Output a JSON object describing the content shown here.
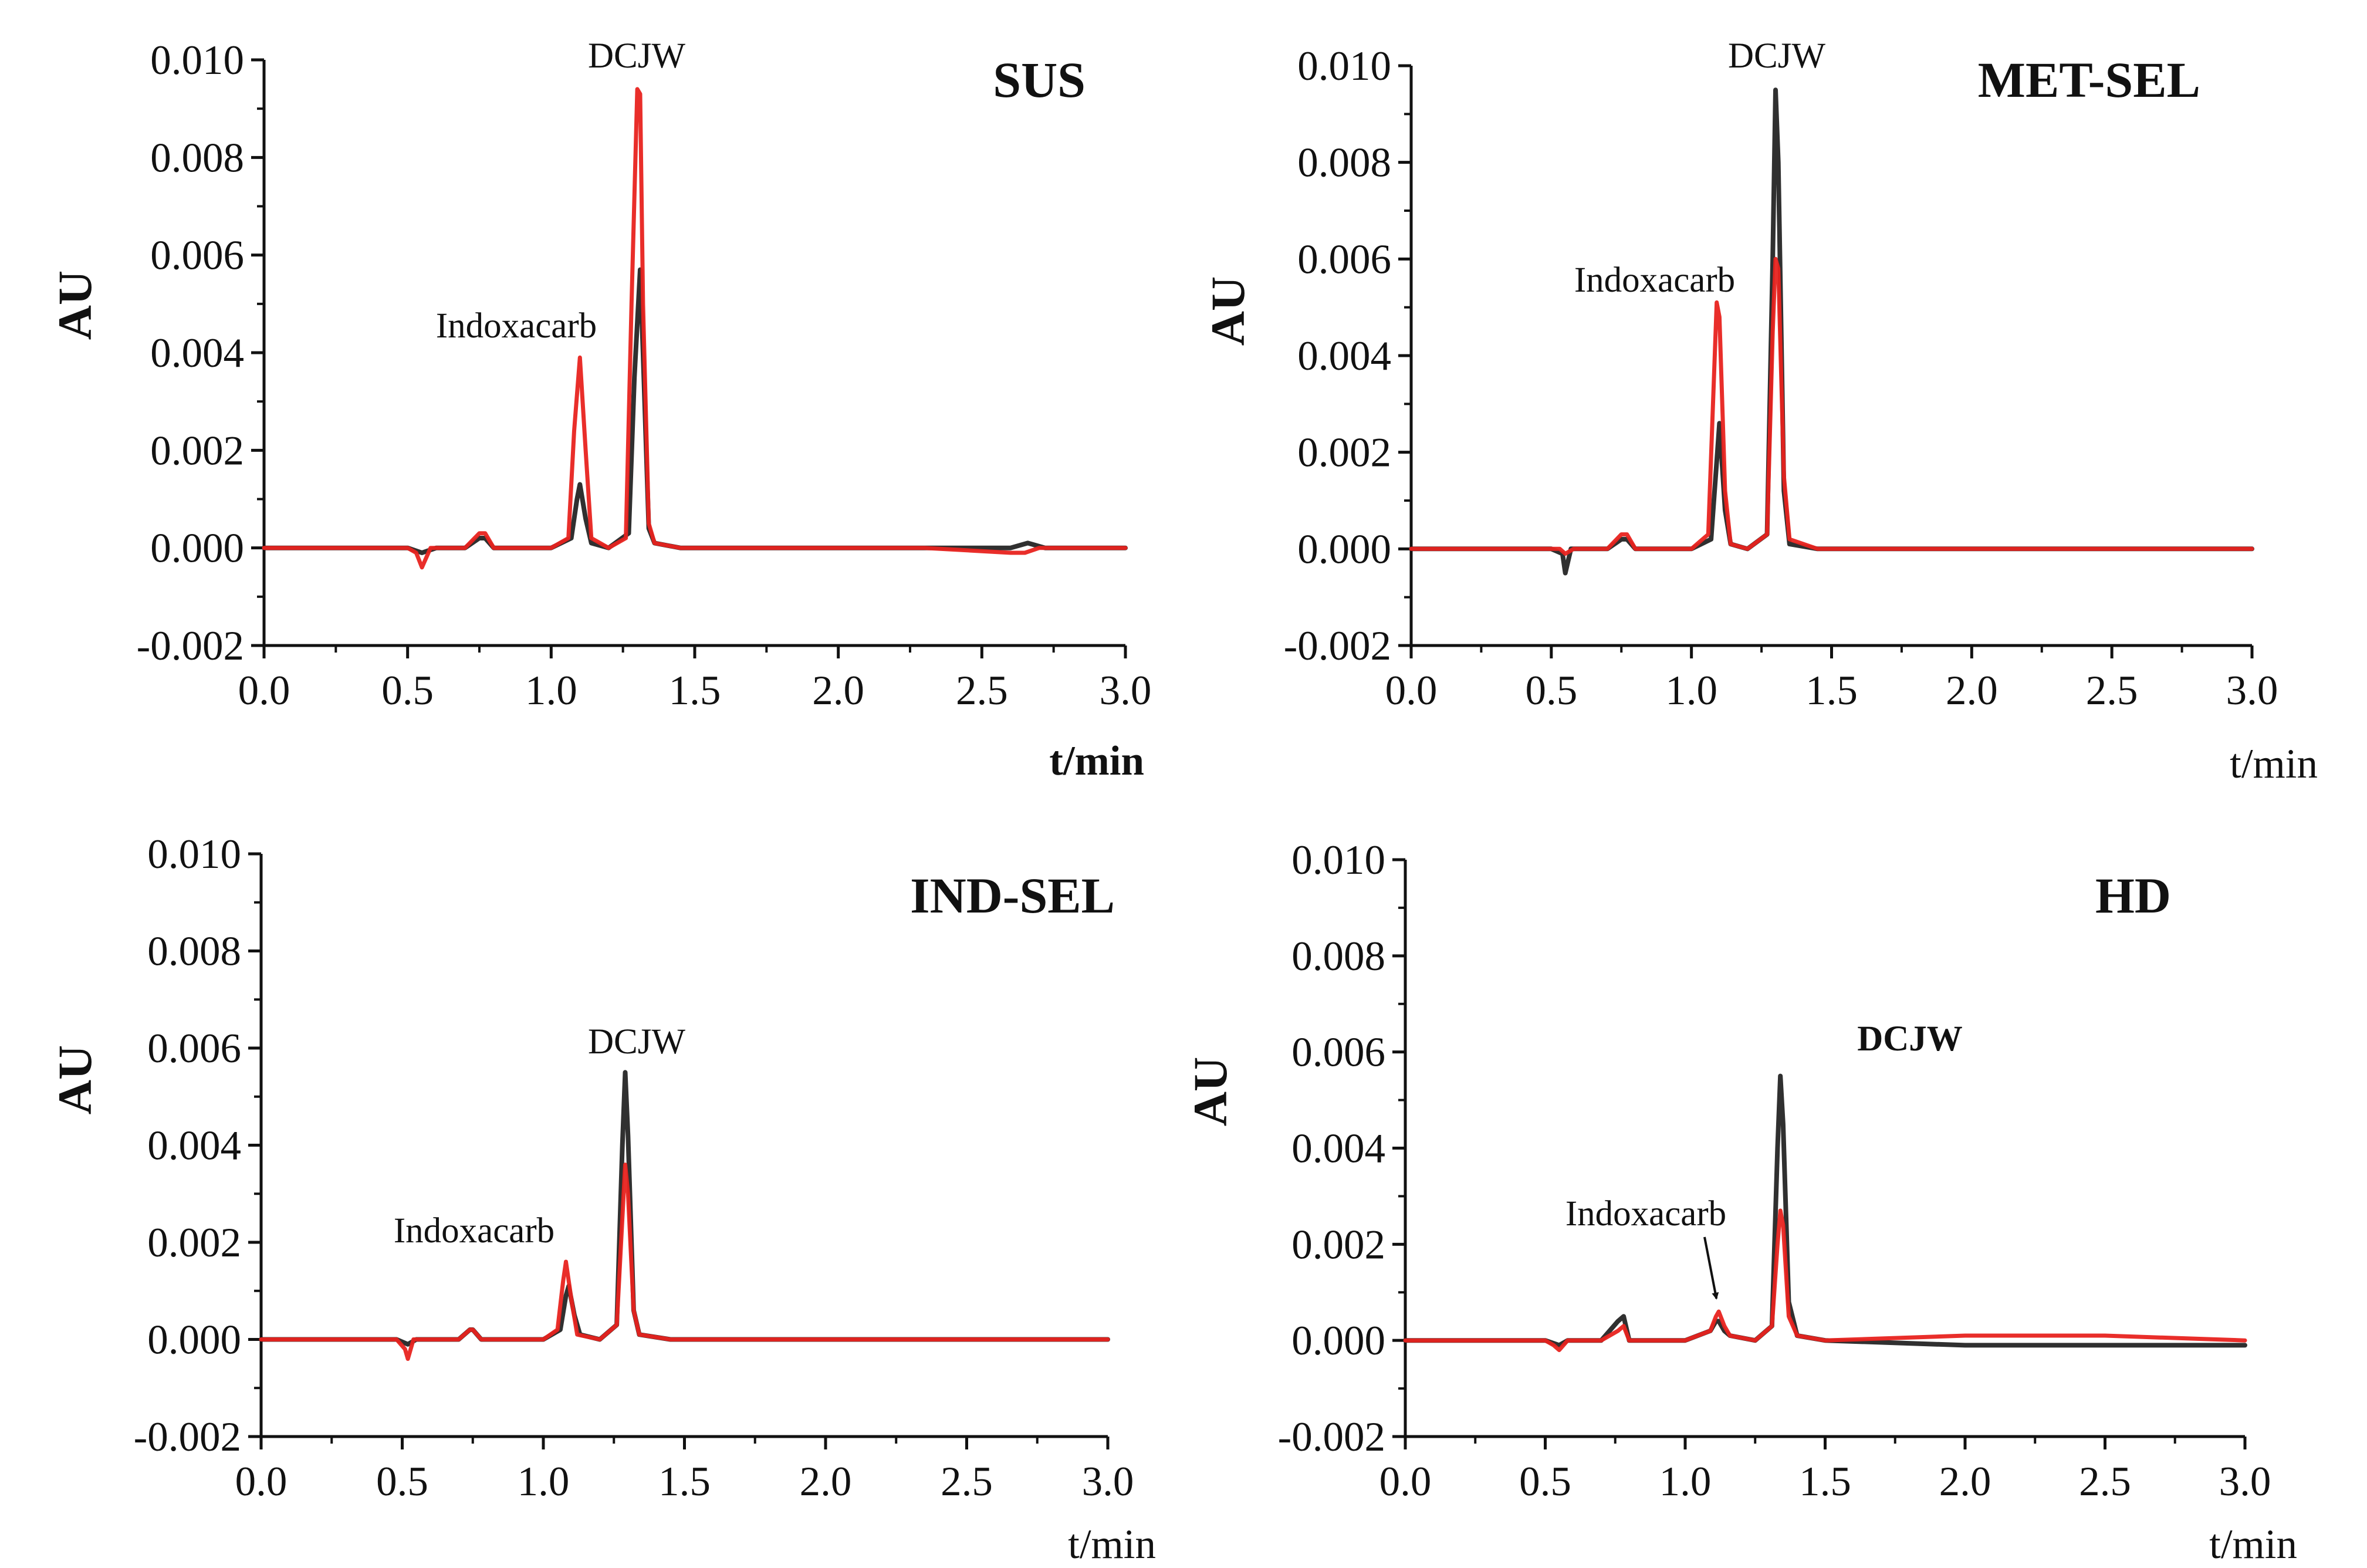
{
  "figure": {
    "description_colors": {
      "red_trace": "#e8231f",
      "black_trace": "#1a1a1a",
      "axis": "#111111"
    }
  },
  "chart_data": [
    {
      "type": "line",
      "title": "SUS",
      "xlabel": "t/min",
      "ylabel": "AU",
      "xlim": [
        0,
        3.0
      ],
      "ylim": [
        -0.002,
        0.01
      ],
      "xticks": [
        "0.0",
        "0.5",
        "1.0",
        "1.5",
        "2.0",
        "2.5",
        "3.0"
      ],
      "yticks": [
        "-0.002",
        "0.000",
        "0.002",
        "0.004",
        "0.006",
        "0.008",
        "0.010"
      ],
      "annotations": [
        {
          "text": "Indoxacarb",
          "x": 0.9,
          "y": 0.0045
        },
        {
          "text": "DCJW",
          "x": 1.3,
          "y": 0.01
        }
      ],
      "series": [
        {
          "name": "red",
          "color": "#e8231f",
          "x": [
            0.0,
            0.5,
            0.53,
            0.55,
            0.58,
            0.7,
            0.75,
            0.77,
            0.8,
            1.0,
            1.06,
            1.08,
            1.1,
            1.12,
            1.14,
            1.2,
            1.26,
            1.28,
            1.3,
            1.31,
            1.32,
            1.34,
            1.36,
            1.45,
            1.9,
            2.3,
            2.6,
            2.65,
            2.7,
            3.0
          ],
          "values": [
            0.0,
            0.0,
            -0.0001,
            -0.0004,
            0.0,
            0.0,
            0.0003,
            0.0003,
            0.0,
            0.0,
            0.0002,
            0.0024,
            0.0039,
            0.002,
            0.0002,
            0.0,
            0.0002,
            0.005,
            0.0094,
            0.0093,
            0.005,
            0.0005,
            0.0001,
            0.0,
            0.0,
            0.0,
            -0.0001,
            -0.0001,
            0.0,
            0.0
          ]
        },
        {
          "name": "black",
          "color": "#1a1a1a",
          "x": [
            0.0,
            0.5,
            0.55,
            0.6,
            0.7,
            0.75,
            0.77,
            0.8,
            1.0,
            1.07,
            1.09,
            1.1,
            1.12,
            1.14,
            1.2,
            1.27,
            1.29,
            1.31,
            1.32,
            1.34,
            1.36,
            1.45,
            2.0,
            2.6,
            2.66,
            2.72,
            3.0
          ],
          "values": [
            0.0,
            0.0,
            -0.0001,
            0.0,
            0.0,
            0.0002,
            0.0002,
            0.0,
            0.0,
            0.0002,
            0.001,
            0.0013,
            0.0006,
            0.0001,
            0.0,
            0.0003,
            0.0035,
            0.0057,
            0.004,
            0.0004,
            0.0001,
            0.0,
            0.0,
            0.0,
            0.0001,
            0.0,
            0.0
          ]
        }
      ]
    },
    {
      "type": "line",
      "title": "MET-SEL",
      "xlabel": "t/min",
      "ylabel": "AU",
      "xlim": [
        0,
        3.0
      ],
      "ylim": [
        -0.002,
        0.01
      ],
      "xticks": [
        "0.0",
        "0.5",
        "1.0",
        "1.5",
        "2.0",
        "2.5",
        "3.0"
      ],
      "yticks": [
        "-0.002",
        "0.000",
        "0.002",
        "0.004",
        "0.006",
        "0.008",
        "0.010"
      ],
      "annotations": [
        {
          "text": "Indoxacarb",
          "x": 0.88,
          "y": 0.0055
        },
        {
          "text": "DCJW",
          "x": 1.3,
          "y": 0.01
        }
      ],
      "series": [
        {
          "name": "red",
          "color": "#e8231f",
          "x": [
            0.0,
            0.5,
            0.53,
            0.55,
            0.58,
            0.7,
            0.75,
            0.77,
            0.8,
            1.0,
            1.06,
            1.08,
            1.09,
            1.1,
            1.12,
            1.14,
            1.2,
            1.27,
            1.29,
            1.3,
            1.31,
            1.33,
            1.35,
            1.45,
            2.0,
            3.0
          ],
          "values": [
            0.0,
            0.0,
            0.0,
            -0.0001,
            0.0,
            0.0,
            0.0003,
            0.0003,
            0.0,
            0.0,
            0.0003,
            0.0035,
            0.0051,
            0.0048,
            0.0012,
            0.0001,
            0.0,
            0.0003,
            0.0045,
            0.006,
            0.0058,
            0.0015,
            0.0002,
            0.0,
            0.0,
            0.0
          ]
        },
        {
          "name": "black",
          "color": "#1a1a1a",
          "x": [
            0.0,
            0.5,
            0.54,
            0.55,
            0.57,
            0.7,
            0.75,
            0.77,
            0.8,
            1.0,
            1.07,
            1.09,
            1.1,
            1.12,
            1.14,
            1.2,
            1.27,
            1.29,
            1.3,
            1.31,
            1.33,
            1.35,
            1.45,
            2.0,
            3.0
          ],
          "values": [
            0.0,
            0.0,
            -0.0001,
            -0.0005,
            0.0,
            0.0,
            0.0002,
            0.0002,
            0.0,
            0.0,
            0.0002,
            0.0018,
            0.0026,
            0.0008,
            0.0001,
            0.0,
            0.0003,
            0.006,
            0.0095,
            0.008,
            0.0012,
            0.0001,
            0.0,
            0.0,
            0.0
          ]
        }
      ]
    },
    {
      "type": "line",
      "title": "IND-SEL",
      "xlabel": "t/min",
      "ylabel": "AU",
      "xlim": [
        0,
        3.0
      ],
      "ylim": [
        -0.002,
        0.01
      ],
      "xticks": [
        "0.0",
        "0.5",
        "1.0",
        "1.5",
        "2.0",
        "2.5",
        "3.0"
      ],
      "yticks": [
        "-0.002",
        "0.000",
        "0.002",
        "0.004",
        "0.006",
        "0.008",
        "0.010"
      ],
      "annotations": [
        {
          "text": "Indoxacarb",
          "x": 0.75,
          "y": 0.0019
        },
        {
          "text": "DCJW",
          "x": 1.3,
          "y": 0.0058
        }
      ],
      "series": [
        {
          "name": "red",
          "color": "#e8231f",
          "x": [
            0.0,
            0.48,
            0.51,
            0.52,
            0.54,
            0.7,
            0.74,
            0.75,
            0.78,
            1.0,
            1.05,
            1.07,
            1.08,
            1.1,
            1.12,
            1.2,
            1.26,
            1.28,
            1.29,
            1.3,
            1.32,
            1.34,
            1.45,
            2.0,
            3.0
          ],
          "values": [
            0.0,
            0.0,
            -0.0002,
            -0.0004,
            0.0,
            0.0,
            0.0002,
            0.0002,
            0.0,
            0.0,
            0.0002,
            0.0012,
            0.0016,
            0.0008,
            0.0001,
            0.0,
            0.0003,
            0.0025,
            0.0036,
            0.003,
            0.0006,
            0.0001,
            0.0,
            0.0,
            0.0
          ]
        },
        {
          "name": "black",
          "color": "#1a1a1a",
          "x": [
            0.0,
            0.48,
            0.52,
            0.55,
            0.7,
            0.74,
            0.75,
            0.78,
            1.0,
            1.06,
            1.08,
            1.09,
            1.11,
            1.13,
            1.2,
            1.26,
            1.28,
            1.29,
            1.3,
            1.32,
            1.34,
            1.45,
            2.0,
            3.0
          ],
          "values": [
            0.0,
            0.0,
            -0.0001,
            0.0,
            0.0,
            0.0002,
            0.0002,
            0.0,
            0.0,
            0.0002,
            0.0009,
            0.0011,
            0.0005,
            0.0001,
            0.0,
            0.0003,
            0.004,
            0.0055,
            0.0042,
            0.0006,
            0.0001,
            0.0,
            0.0,
            0.0
          ]
        }
      ]
    },
    {
      "type": "line",
      "title": "HD",
      "xlabel": "t/min",
      "ylabel": "AU",
      "xlim": [
        0,
        3.0
      ],
      "ylim": [
        -0.002,
        0.01
      ],
      "xticks": [
        "0.0",
        "0.5",
        "1.0",
        "1.5",
        "2.0",
        "2.5",
        "3.0"
      ],
      "yticks": [
        "-0.002",
        "0.000",
        "0.002",
        "0.004",
        "0.006",
        "0.008",
        "0.010"
      ],
      "annotations": [
        {
          "text": "DCJW",
          "x": 1.38,
          "y": 0.006
        },
        {
          "text": "Indoxacarb",
          "x": 0.85,
          "y": 0.0025,
          "arrow_to": [
            1.12,
            0.0007
          ]
        }
      ],
      "series": [
        {
          "name": "red",
          "color": "#e8231f",
          "x": [
            0.0,
            0.5,
            0.53,
            0.55,
            0.58,
            0.7,
            0.76,
            0.78,
            0.8,
            1.0,
            1.09,
            1.11,
            1.12,
            1.14,
            1.16,
            1.25,
            1.31,
            1.33,
            1.34,
            1.35,
            1.37,
            1.4,
            1.5,
            2.0,
            2.5,
            3.0
          ],
          "values": [
            0.0,
            0.0,
            -0.0001,
            -0.0002,
            0.0,
            0.0,
            0.0002,
            0.0003,
            0.0,
            0.0,
            0.0002,
            0.0005,
            0.0006,
            0.0003,
            0.0001,
            0.0,
            0.0003,
            0.002,
            0.0027,
            0.0024,
            0.0005,
            0.0001,
            0.0,
            0.0001,
            0.0001,
            0.0
          ]
        },
        {
          "name": "black",
          "color": "#1a1a1a",
          "x": [
            0.0,
            0.5,
            0.55,
            0.58,
            0.7,
            0.76,
            0.78,
            0.8,
            1.0,
            1.09,
            1.11,
            1.12,
            1.14,
            1.16,
            1.25,
            1.31,
            1.33,
            1.34,
            1.35,
            1.37,
            1.4,
            1.5,
            2.0,
            3.0
          ],
          "values": [
            0.0,
            0.0,
            -0.0001,
            0.0,
            0.0,
            0.0004,
            0.0005,
            0.0,
            0.0,
            0.0002,
            0.0004,
            0.0004,
            0.0002,
            0.0001,
            0.0,
            0.0003,
            0.004,
            0.0055,
            0.0045,
            0.0008,
            0.0001,
            0.0,
            -0.0001,
            -0.0001
          ]
        }
      ]
    }
  ]
}
